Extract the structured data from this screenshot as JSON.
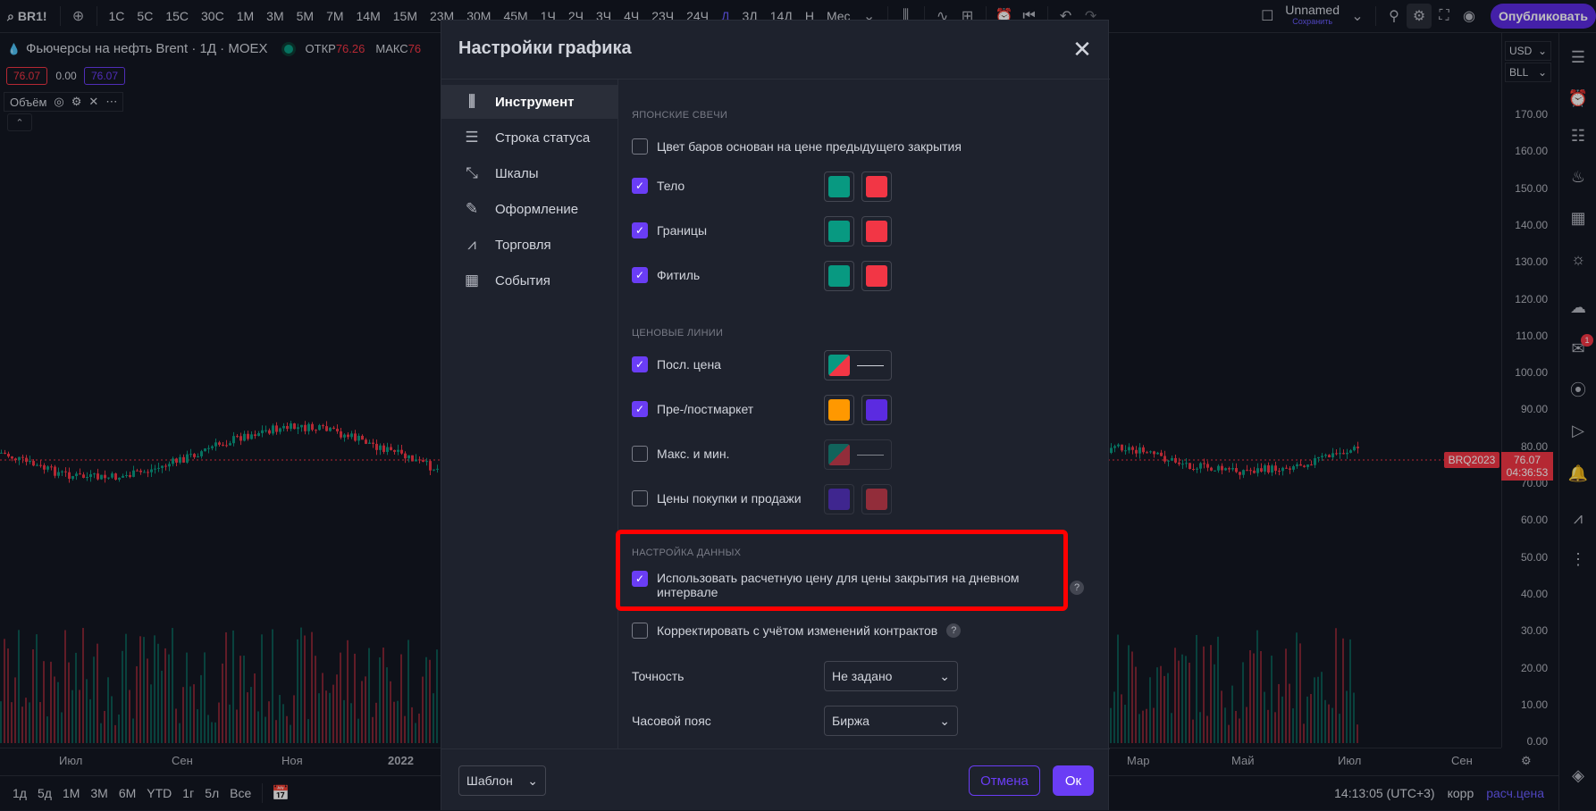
{
  "topbar": {
    "symbol": "BR1!",
    "intervals": [
      "1С",
      "5С",
      "15С",
      "30С",
      "1М",
      "3М",
      "5М",
      "7М",
      "14М",
      "15М",
      "23М",
      "30М",
      "45М",
      "1Ч",
      "2Ч",
      "3Ч",
      "4Ч",
      "23Ч",
      "24Ч",
      "Д",
      "3Д",
      "14Д",
      "Н",
      "Мес"
    ],
    "active_interval": "Д",
    "layout_name": "Unnamed",
    "layout_status": "Сохранить",
    "publish_label": "Опубликовать"
  },
  "legend": {
    "title": "Фьючерсы на нефть Brent · 1Д · MOEX",
    "open_label": "ОТКР",
    "open_value": "76.26",
    "high_label": "МАКС",
    "high_value": "76",
    "bid": "76.07",
    "spread": "0.00",
    "ask": "76.07",
    "volume_label": "Объём"
  },
  "price_axis": {
    "currency": "USD",
    "unit": "BLL",
    "ticks": [
      "170.00",
      "160.00",
      "150.00",
      "140.00",
      "130.00",
      "120.00",
      "110.00",
      "100.00",
      "90.00",
      "80.00",
      "70.00",
      "60.00",
      "50.00",
      "40.00",
      "30.00",
      "20.00",
      "10.00",
      "0.00"
    ],
    "symbol_label": "BRQ2023",
    "current_price": "76.07",
    "countdown": "04:36:53"
  },
  "time_axis": {
    "left_labels": [
      "Июл",
      "Сен",
      "Ноя",
      "2022"
    ],
    "right_labels": [
      "Мар",
      "Май",
      "Июл",
      "Сен"
    ]
  },
  "bottombar": {
    "ranges": [
      "1д",
      "5д",
      "1М",
      "3М",
      "6М",
      "YTD",
      "1г",
      "5л",
      "Все"
    ],
    "clock": "14:13:05 (UTC+3)",
    "adj": "корр",
    "settlement": "расч.цена"
  },
  "modal": {
    "title": "Настройки графика",
    "nav": [
      {
        "label": "Инструмент",
        "icon": "candle-icon",
        "glyph": "⫼"
      },
      {
        "label": "Строка статуса",
        "icon": "status-line-icon",
        "glyph": "☰"
      },
      {
        "label": "Шкалы",
        "icon": "scales-icon",
        "glyph": "⤡"
      },
      {
        "label": "Оформление",
        "icon": "pencil-icon",
        "glyph": "✎"
      },
      {
        "label": "Торговля",
        "icon": "trading-icon",
        "glyph": "⩘"
      },
      {
        "label": "События",
        "icon": "calendar-icon",
        "glyph": "▦"
      }
    ],
    "sections": {
      "candles": "ЯПОНСКИЕ СВЕЧИ",
      "price_lines": "ЦЕНОВЫЕ ЛИНИИ",
      "data": "НАСТРОЙКА ДАННЫХ"
    },
    "options": {
      "prev_close": "Цвет баров основан на цене предыдущего закрытия",
      "body": "Тело",
      "borders": "Границы",
      "wick": "Фитиль",
      "last_price": "Посл. цена",
      "prepost": "Пре-/постмаркет",
      "highlow": "Макс. и мин.",
      "bidask": "Цены покупки и продажи",
      "settlement": "Использовать расчетную цену для цены закрытия на дневном интервале",
      "adjust": "Корректировать с учётом изменений контрактов",
      "precision_label": "Точность",
      "precision_value": "Не задано",
      "timezone_label": "Часовой пояс",
      "timezone_value": "Биржа"
    },
    "colors": {
      "up": "#089981",
      "down": "#f23645",
      "pre": "#ff9800",
      "post": "#5b2be0"
    },
    "footer": {
      "template": "Шаблон",
      "cancel": "Отмена",
      "ok": "Ок"
    }
  }
}
